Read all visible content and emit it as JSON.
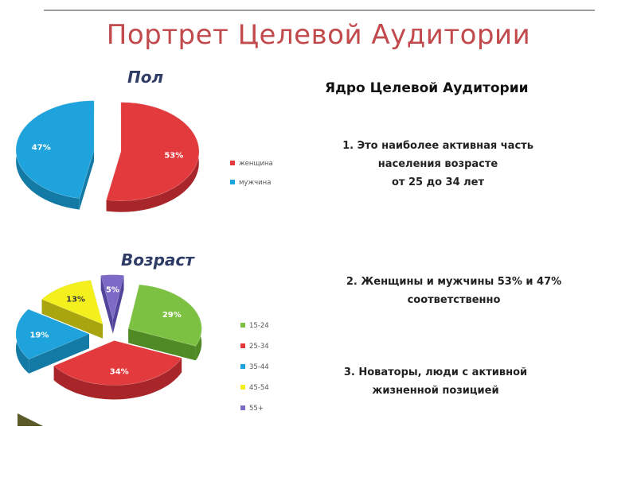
{
  "slide": {
    "title": "Портрет Целевой Аудитории"
  },
  "core": {
    "heading": "Ядро Целевой Аудитории",
    "points": [
      {
        "lines": [
          "1.   Это наиболее активная часть",
          "населения  возрасте",
          "от 25 до 34 лет"
        ]
      },
      {
        "lines": [
          "2. Женщины и мужчины 53% и 47%",
          "соответственно"
        ]
      },
      {
        "lines": [
          "3. Новаторы, люди с активной",
          "жизненной позицией"
        ]
      }
    ]
  },
  "chart_data": [
    {
      "type": "pie",
      "title": "Пол",
      "labels": [
        "женщина",
        "мужчина"
      ],
      "values": [
        53,
        47
      ],
      "value_labels": [
        "53%",
        "47%"
      ],
      "colors": [
        "#e33a3d",
        "#1ea3dc"
      ],
      "side_colors": [
        "#a8262a",
        "#137aa6"
      ],
      "exploded": true,
      "legend_placement": "right"
    },
    {
      "type": "pie",
      "title": "Возраст",
      "labels": [
        "15-24",
        "25-34",
        "35-44",
        "45-54",
        "55+"
      ],
      "values": [
        29,
        34,
        19,
        13,
        5
      ],
      "value_labels": [
        "29%",
        "34%",
        "19%",
        "13%",
        "5%"
      ],
      "colors": [
        "#7dc142",
        "#e33a3d",
        "#1ea3dc",
        "#f3f01d",
        "#7c6ac6"
      ],
      "side_colors": [
        "#4f8a25",
        "#a8262a",
        "#137aa6",
        "#a8a50f",
        "#52449a"
      ],
      "exploded": true,
      "legend_placement": "right"
    }
  ]
}
